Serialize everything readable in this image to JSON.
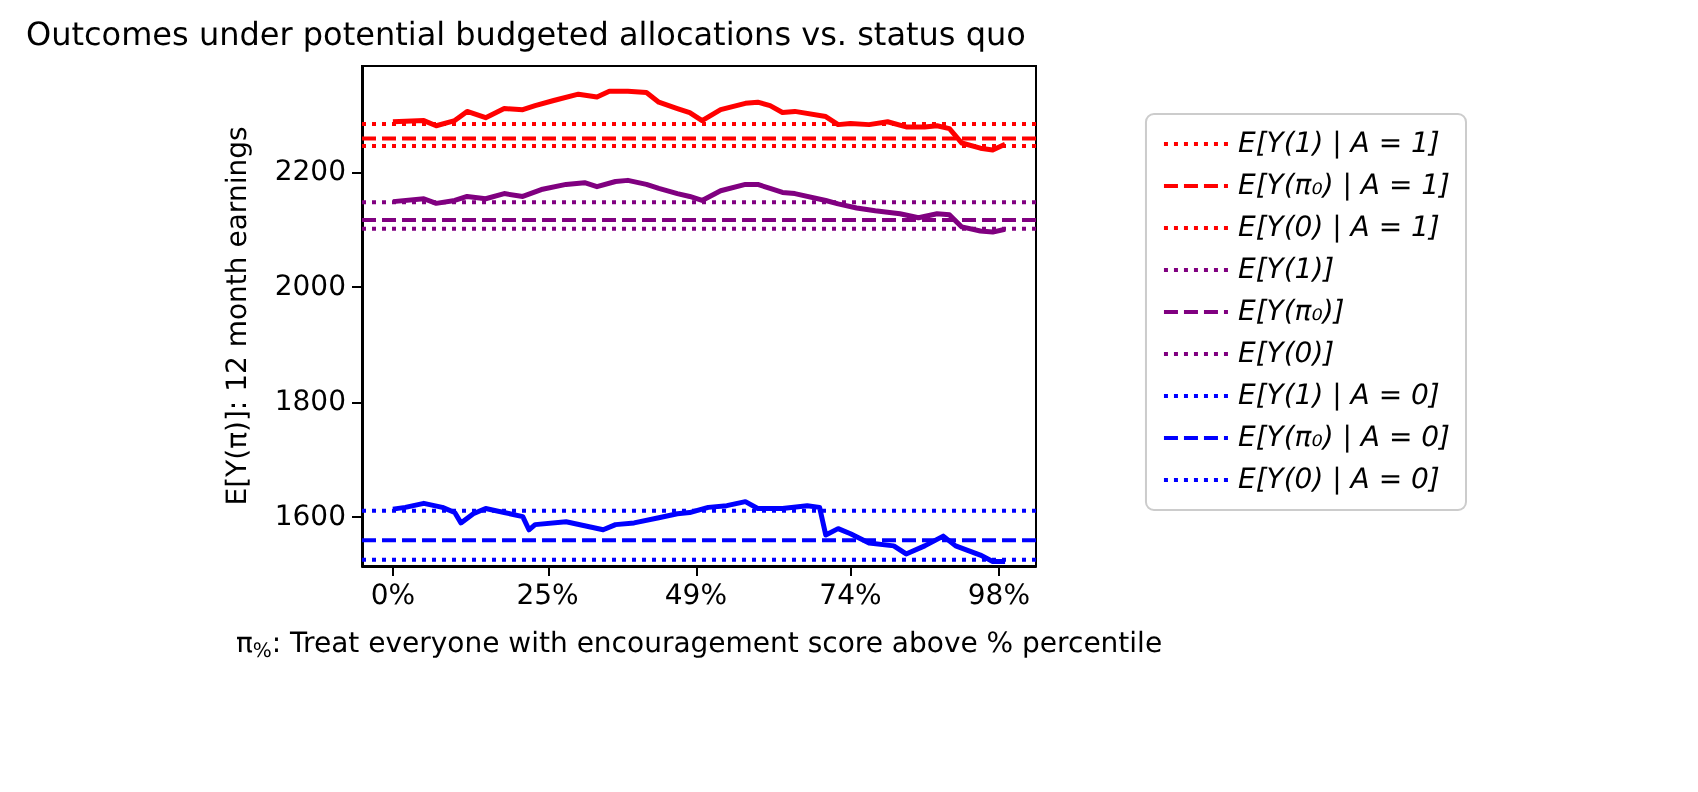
{
  "chart_data": {
    "type": "line",
    "title": "Outcomes under potential budgeted allocations vs. status quo",
    "xlabel": "π$_{%}$: Treat everyone with encouragement score above % percentile",
    "ylabel": "E[Y(π)]: 12 month earnings",
    "xlim": [
      -5,
      104
    ],
    "xticks": [
      {
        "value": 0,
        "label": "0%"
      },
      {
        "value": 25,
        "label": "25%"
      },
      {
        "value": 49,
        "label": "49%"
      },
      {
        "value": 74,
        "label": "74%"
      },
      {
        "value": 98,
        "label": "98%"
      }
    ],
    "ylim": [
      1515,
      2385
    ],
    "yticks": [
      1600,
      1800,
      2000,
      2200
    ],
    "grid": false,
    "legend": "right",
    "marker": "none",
    "series": [
      {
        "color": "#ff0000",
        "line_style": "solid",
        "x": [
          0,
          5,
          7,
          10,
          12,
          15,
          18,
          21,
          23,
          26,
          30,
          33,
          35,
          38,
          41,
          43,
          46,
          48,
          50,
          53,
          57,
          59,
          61,
          63,
          65,
          70,
          72,
          74,
          77,
          80,
          83,
          86,
          88,
          90,
          92,
          95,
          97,
          99
        ],
        "values": [
          2288,
          2290,
          2281,
          2290,
          2306,
          2295,
          2311,
          2309,
          2316,
          2325,
          2336,
          2331,
          2341,
          2341,
          2339,
          2322,
          2311,
          2304,
          2290,
          2309,
          2320,
          2322,
          2316,
          2304,
          2306,
          2297,
          2283,
          2285,
          2283,
          2288,
          2279,
          2279,
          2281,
          2276,
          2251,
          2242,
          2239,
          2249
        ]
      },
      {
        "color": "#800080",
        "line_style": "solid",
        "x": [
          0,
          5,
          7,
          10,
          12,
          15,
          18,
          21,
          24,
          28,
          31,
          33,
          36,
          38,
          41,
          43,
          46,
          48,
          50,
          53,
          57,
          59,
          61,
          63,
          65,
          70,
          72,
          75,
          78,
          82,
          85,
          88,
          90,
          92,
          95,
          97,
          99
        ],
        "values": [
          2149,
          2154,
          2146,
          2151,
          2158,
          2154,
          2163,
          2158,
          2170,
          2179,
          2182,
          2175,
          2184,
          2186,
          2179,
          2172,
          2163,
          2158,
          2151,
          2168,
          2179,
          2179,
          2172,
          2165,
          2163,
          2151,
          2145,
          2138,
          2133,
          2128,
          2121,
          2128,
          2126,
          2105,
          2098,
          2096,
          2101
        ]
      },
      {
        "color": "#0000ff",
        "line_style": "solid",
        "x": [
          0,
          2,
          5,
          8,
          10,
          11,
          13,
          15,
          18,
          21,
          22,
          23,
          28,
          31,
          34,
          36,
          39,
          43,
          46,
          48,
          51,
          54,
          57,
          59,
          63,
          67,
          69,
          70,
          72,
          74,
          77,
          81,
          83,
          86,
          89,
          91,
          95,
          97,
          99
        ],
        "values": [
          1614,
          1617,
          1624,
          1617,
          1608,
          1590,
          1606,
          1615,
          1608,
          1601,
          1578,
          1587,
          1592,
          1585,
          1578,
          1587,
          1590,
          1599,
          1606,
          1608,
          1617,
          1620,
          1627,
          1615,
          1615,
          1620,
          1617,
          1569,
          1580,
          1571,
          1555,
          1550,
          1536,
          1550,
          1567,
          1550,
          1534,
          1523,
          1523
        ]
      },
      {
        "name": "E[Y(1) | A = 1]",
        "color": "#ff0000",
        "line_style": "dotted",
        "x": [
          -5,
          104
        ],
        "values": [
          2284,
          2284
        ]
      },
      {
        "name": "E[Y(π₀) | A = 1]",
        "color": "#ff0000",
        "line_style": "dashed",
        "x": [
          -5,
          104
        ],
        "values": [
          2259,
          2259
        ]
      },
      {
        "name": "E[Y(0) | A = 1]",
        "color": "#ff0000",
        "line_style": "dotted",
        "x": [
          -5,
          104
        ],
        "values": [
          2246,
          2246
        ]
      },
      {
        "name": "E[Y(1)]",
        "color": "#800080",
        "line_style": "dotted",
        "x": [
          -5,
          104
        ],
        "values": [
          2148,
          2148
        ]
      },
      {
        "name": "E[Y(π₀)]",
        "color": "#800080",
        "line_style": "dashed",
        "x": [
          -5,
          104
        ],
        "values": [
          2117,
          2117
        ]
      },
      {
        "name": "E[Y(0)]",
        "color": "#800080",
        "line_style": "dotted",
        "x": [
          -5,
          104
        ],
        "values": [
          2102,
          2102
        ]
      },
      {
        "name": "E[Y(1) | A = 0]",
        "color": "#0000ff",
        "line_style": "dotted",
        "x": [
          -5,
          104
        ],
        "values": [
          1611,
          1611
        ]
      },
      {
        "name": "E[Y(π₀) | A = 0]",
        "color": "#0000ff",
        "line_style": "dashed",
        "x": [
          -5,
          104
        ],
        "values": [
          1560,
          1560
        ]
      },
      {
        "name": "E[Y(0) | A = 0]",
        "color": "#0000ff",
        "line_style": "dotted",
        "x": [
          -5,
          104
        ],
        "values": [
          1526,
          1526
        ]
      }
    ]
  }
}
